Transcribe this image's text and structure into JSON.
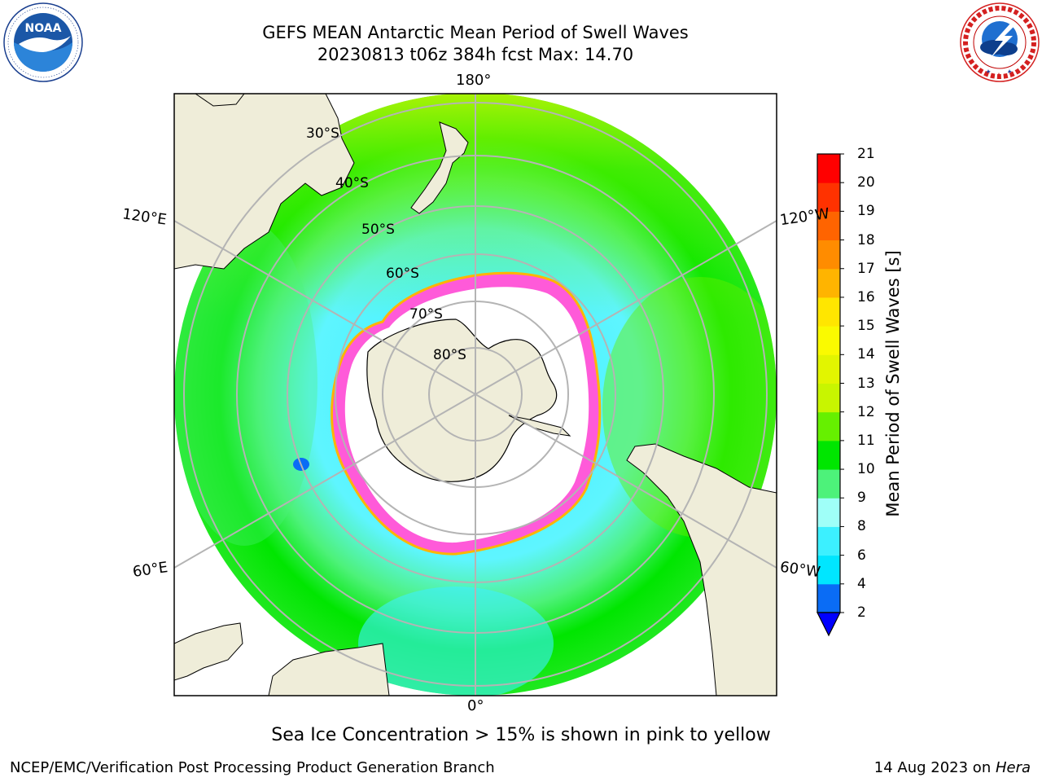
{
  "title": {
    "line1": "GEFS MEAN Antarctic Mean Period of Swell Waves",
    "line2": "20230813 t06z 384h fcst   Max: 14.70"
  },
  "logos": {
    "left": {
      "icon": "noaa-logo",
      "text": "NOAA",
      "ring_text": "NATIONAL OCEANIC AND ATMOSPHERIC ADMINISTRATION · U.S. DEPARTMENT OF COMMERCE"
    },
    "right": {
      "icon": "national-weather-service-logo",
      "ring_text": "NATIONAL WEATHER SERVICE"
    }
  },
  "map": {
    "projection": "south-polar-stereographic",
    "longitude_labels": {
      "top": "180°",
      "bottom": "0°",
      "upper_left": "120°E",
      "upper_right": "120°W",
      "lower_left": "60°E",
      "lower_right": "60°W"
    },
    "latitude_labels": [
      "30°S",
      "40°S",
      "50°S",
      "60°S",
      "70°S",
      "80°S"
    ],
    "colors": {
      "land": "#efedd9",
      "ocean_no_data": "#ffffff",
      "coastline": "#000000",
      "graticule": "#b4b4b4"
    }
  },
  "colorbar": {
    "label": "Mean Period of Swell Waves [s]",
    "ticks": [
      "2",
      "4",
      "6",
      "8",
      "9",
      "10",
      "11",
      "12",
      "13",
      "14",
      "15",
      "16",
      "17",
      "18",
      "19",
      "20",
      "21"
    ],
    "colors": [
      "#0a6cf5",
      "#00e6ff",
      "#3cf0ff",
      "#9ffff8",
      "#4df27a",
      "#00e600",
      "#66f000",
      "#c8f500",
      "#e2f500",
      "#fafa00",
      "#ffe600",
      "#ffb400",
      "#ff8c00",
      "#ff6400",
      "#ff3200",
      "#ff0000"
    ],
    "under_color": "#0000ff",
    "extend": "min"
  },
  "note": "Sea Ice Concentration > 15% is shown in pink to yellow",
  "footer": {
    "left": "NCEP/EMC/Verification Post Processing Product Generation Branch",
    "right_prefix": "14 Aug 2023 on ",
    "right_machine": "Hera"
  }
}
